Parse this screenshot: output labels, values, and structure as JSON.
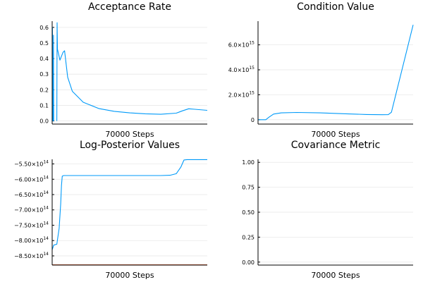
{
  "chart_data": [
    {
      "type": "line",
      "title": "Acceptance Rate",
      "xlabel": "70000 Steps",
      "ylabel": "",
      "ylim": [
        -0.02,
        0.64
      ],
      "yticks": [
        {
          "v": 0.0,
          "label": "0.0"
        },
        {
          "v": 0.1,
          "label": "0.1"
        },
        {
          "v": 0.2,
          "label": "0.2"
        },
        {
          "v": 0.3,
          "label": "0.3"
        },
        {
          "v": 0.4,
          "label": "0.4"
        },
        {
          "v": 0.5,
          "label": "0.5"
        },
        {
          "v": 0.6,
          "label": "0.6"
        }
      ],
      "grid": true,
      "legend": "none",
      "series": [
        {
          "color": "#009af9",
          "x": [
            0,
            0.002,
            0.004,
            0.006,
            0.008,
            0.01
          ],
          "y": [
            0.0,
            0.6,
            0.0,
            0.0,
            0.55,
            0.0
          ]
        },
        {
          "color": "#009af9",
          "x": [
            0.03,
            0.032,
            0.034,
            0.05,
            0.07,
            0.08,
            0.1,
            0.13,
            0.2,
            0.3,
            0.4,
            0.5,
            0.6,
            0.7,
            0.8,
            0.84,
            0.88,
            0.92,
            1.0
          ],
          "y": [
            0.0,
            0.63,
            0.46,
            0.39,
            0.44,
            0.45,
            0.28,
            0.19,
            0.12,
            0.08,
            0.062,
            0.052,
            0.046,
            0.043,
            0.05,
            0.065,
            0.078,
            0.075,
            0.068
          ]
        }
      ]
    },
    {
      "type": "line",
      "title": "Condition Value",
      "xlabel": "70000 Steps",
      "ylabel": "",
      "ylim": [
        -350000000000000.0,
        7900000000000000.0
      ],
      "yticks": [
        {
          "v": 0,
          "label": "0",
          "exp": ""
        },
        {
          "v": 2000000000000000.0,
          "label": "2.0×10",
          "exp": "15"
        },
        {
          "v": 4000000000000000.0,
          "label": "4.0×10",
          "exp": "15"
        },
        {
          "v": 6000000000000000.0,
          "label": "6.0×10",
          "exp": "15"
        }
      ],
      "grid": true,
      "legend": "none",
      "series": [
        {
          "color": "#009af9",
          "x": [
            0,
            0.05,
            0.07,
            0.1,
            0.15,
            0.25,
            0.4,
            0.55,
            0.7,
            0.8,
            0.84,
            0.86,
            0.88,
            0.92,
            0.96,
            1.0
          ],
          "y": [
            0,
            0,
            200000000000000.0,
            450000000000000.0,
            550000000000000.0,
            580000000000000.0,
            550000000000000.0,
            480000000000000.0,
            420000000000000.0,
            400000000000000.0,
            410000000000000.0,
            600000000000000.0,
            1600000000000000.0,
            3600000000000000.0,
            5600000000000000.0,
            7600000000000000.0
          ]
        }
      ]
    },
    {
      "type": "line",
      "title": "Log-Posterior Values",
      "xlabel": "70000 Steps",
      "ylabel": "",
      "ylim": [
        -880000000000000.0,
        -535000000000000.0
      ],
      "yticks": [
        {
          "v": -850000000000000.0,
          "label": "−8.50×10",
          "exp": "14"
        },
        {
          "v": -800000000000000.0,
          "label": "−8.00×10",
          "exp": "14"
        },
        {
          "v": -750000000000000.0,
          "label": "−7.50×10",
          "exp": "14"
        },
        {
          "v": -700000000000000.0,
          "label": "−7.00×10",
          "exp": "14"
        },
        {
          "v": -650000000000000.0,
          "label": "−6.50×10",
          "exp": "14"
        },
        {
          "v": -600000000000000.0,
          "label": "−6.00×10",
          "exp": "14"
        },
        {
          "v": -550000000000000.0,
          "label": "−5.50×10",
          "exp": "14"
        }
      ],
      "grid": true,
      "legend": "none",
      "series": [
        {
          "color": "#e26f46",
          "x": [
            0,
            1.0
          ],
          "y": [
            -879000000000000.0,
            -879000000000000.0
          ]
        },
        {
          "color": "#009af9",
          "x": [
            0,
            0.01,
            0.03,
            0.045,
            0.055,
            0.06,
            0.065,
            0.075,
            0.09,
            0.15,
            0.3,
            0.5,
            0.7,
            0.76,
            0.8,
            0.83,
            0.85,
            0.87,
            1.0
          ],
          "y": [
            -830000000000000.0,
            -815000000000000.0,
            -812000000000000.0,
            -760000000000000.0,
            -680000000000000.0,
            -620000000000000.0,
            -590000000000000.0,
            -588000000000000.0,
            -588000000000000.0,
            -588000000000000.0,
            -588000000000000.0,
            -588000000000000.0,
            -588000000000000.0,
            -587000000000000.0,
            -582000000000000.0,
            -560000000000000.0,
            -537000000000000.0,
            -536000000000000.0,
            -536000000000000.0
          ]
        }
      ]
    },
    {
      "type": "line",
      "title": "Covariance Metric",
      "xlabel": "70000 Steps",
      "ylabel": "",
      "ylim": [
        -0.03,
        1.03
      ],
      "yticks": [
        {
          "v": 0.0,
          "label": "0.00"
        },
        {
          "v": 0.25,
          "label": "0.25"
        },
        {
          "v": 0.5,
          "label": "0.50"
        },
        {
          "v": 0.75,
          "label": "0.75"
        },
        {
          "v": 1.0,
          "label": "1.00"
        }
      ],
      "grid": true,
      "legend": "none",
      "series": []
    }
  ]
}
